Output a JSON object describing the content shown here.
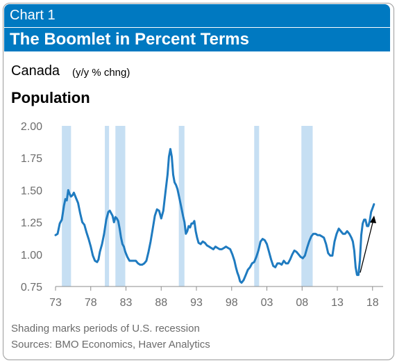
{
  "header": {
    "chart_label": "Chart 1",
    "title": "The Boomlet in Percent Terms"
  },
  "region": "Canada",
  "units": "(y/y % chng)",
  "footnotes": {
    "recession_note": "Shading marks periods of U.S. recession",
    "sources": "Sources: BMO Economics, Haver Analytics"
  },
  "colors": {
    "header": "#0079c1",
    "line": "#1f7bc0",
    "recession": "#c6dff3",
    "arrow": "#000000"
  },
  "chart_data": {
    "type": "line",
    "title": "Population",
    "xlabel": "",
    "ylabel": "",
    "xlim": [
      1973,
      2019.5
    ],
    "ylim": [
      0.75,
      2.0
    ],
    "x_ticks": [
      1973,
      1978,
      1983,
      1988,
      1993,
      1998,
      2003,
      2008,
      2013,
      2018
    ],
    "x_tick_labels": [
      "73",
      "78",
      "83",
      "88",
      "93",
      "98",
      "03",
      "08",
      "13",
      "18"
    ],
    "y_ticks": [
      0.75,
      1.0,
      1.25,
      1.5,
      1.75,
      2.0
    ],
    "y_tick_labels": [
      "0.75",
      "1.00",
      "1.25",
      "1.50",
      "1.75",
      "2.00"
    ],
    "grid": false,
    "legend": "none",
    "recession_periods": [
      [
        1973.9,
        1975.2
      ],
      [
        1980.0,
        1980.6
      ],
      [
        1981.5,
        1982.9
      ],
      [
        1990.5,
        1991.3
      ],
      [
        2001.2,
        2001.9
      ],
      [
        2007.9,
        2009.5
      ]
    ],
    "series": [
      {
        "x": [
          1973.0,
          1973.3,
          1973.6,
          1973.9,
          1974.2,
          1974.4,
          1974.6,
          1974.8,
          1975.0,
          1975.2,
          1975.4,
          1975.6,
          1975.9,
          1976.2,
          1976.5,
          1976.8,
          1977.1,
          1977.4,
          1977.7,
          1978.0,
          1978.3,
          1978.6,
          1978.9,
          1979.1,
          1979.3,
          1979.6,
          1979.9,
          1980.2,
          1980.5,
          1980.7,
          1980.9,
          1981.1,
          1981.3,
          1981.5,
          1981.7,
          1981.9,
          1982.1,
          1982.3,
          1982.5,
          1982.7,
          1982.9,
          1983.2,
          1983.5,
          1983.8,
          1984.1,
          1984.4,
          1984.7,
          1985.0,
          1985.3,
          1985.6,
          1985.9,
          1986.2,
          1986.5,
          1986.8,
          1987.1,
          1987.4,
          1987.7,
          1988.0,
          1988.3,
          1988.6,
          1988.9,
          1989.1,
          1989.3,
          1989.5,
          1989.7,
          1989.9,
          1990.1,
          1990.3,
          1990.5,
          1990.8,
          1991.1,
          1991.3,
          1991.5,
          1991.7,
          1991.9,
          1992.1,
          1992.3,
          1992.5,
          1992.7,
          1992.9,
          1993.1,
          1993.3,
          1993.6,
          1993.9,
          1994.2,
          1994.5,
          1994.8,
          1995.1,
          1995.4,
          1995.7,
          1996.0,
          1996.3,
          1996.6,
          1996.9,
          1997.2,
          1997.5,
          1997.8,
          1998.1,
          1998.4,
          1998.6,
          1998.8,
          1999.0,
          1999.2,
          1999.4,
          1999.7,
          2000.0,
          2000.3,
          2000.6,
          2000.9,
          2001.2,
          2001.5,
          2001.8,
          2002.1,
          2002.4,
          2002.7,
          2003.0,
          2003.3,
          2003.6,
          2003.9,
          2004.2,
          2004.5,
          2004.8,
          2005.1,
          2005.4,
          2005.7,
          2006.0,
          2006.3,
          2006.6,
          2006.9,
          2007.2,
          2007.5,
          2007.8,
          2008.1,
          2008.4,
          2008.7,
          2009.0,
          2009.3,
          2009.6,
          2009.9,
          2010.2,
          2010.5,
          2010.8,
          2011.1,
          2011.4,
          2011.7,
          2012.0,
          2012.3,
          2012.6,
          2012.9,
          2013.2,
          2013.5,
          2013.8,
          2014.1,
          2014.4,
          2014.7,
          2015.0,
          2015.2,
          2015.4,
          2015.6,
          2015.8,
          2016.0,
          2016.2,
          2016.4,
          2016.6,
          2016.8,
          2017.0,
          2017.2,
          2017.4,
          2017.6,
          2017.8,
          2018.0,
          2018.2
        ],
        "values": [
          1.15,
          1.16,
          1.24,
          1.27,
          1.38,
          1.43,
          1.42,
          1.5,
          1.47,
          1.45,
          1.46,
          1.48,
          1.44,
          1.4,
          1.32,
          1.25,
          1.23,
          1.17,
          1.12,
          1.06,
          0.99,
          0.95,
          0.94,
          0.96,
          1.02,
          1.08,
          1.16,
          1.27,
          1.33,
          1.34,
          1.32,
          1.3,
          1.25,
          1.29,
          1.28,
          1.26,
          1.2,
          1.13,
          1.08,
          1.06,
          1.02,
          0.98,
          0.95,
          0.95,
          0.95,
          0.95,
          0.93,
          0.92,
          0.92,
          0.93,
          0.95,
          1.02,
          1.1,
          1.2,
          1.3,
          1.35,
          1.34,
          1.28,
          1.34,
          1.48,
          1.62,
          1.76,
          1.82,
          1.76,
          1.62,
          1.56,
          1.54,
          1.51,
          1.46,
          1.38,
          1.3,
          1.25,
          1.16,
          1.18,
          1.22,
          1.21,
          1.24,
          1.24,
          1.26,
          1.18,
          1.13,
          1.09,
          1.08,
          1.1,
          1.09,
          1.07,
          1.06,
          1.05,
          1.04,
          1.06,
          1.05,
          1.04,
          1.04,
          1.05,
          1.06,
          1.05,
          1.04,
          1.0,
          0.95,
          0.9,
          0.86,
          0.83,
          0.79,
          0.78,
          0.8,
          0.84,
          0.88,
          0.9,
          0.93,
          0.94,
          0.98,
          1.03,
          1.1,
          1.12,
          1.11,
          1.08,
          1.02,
          0.96,
          0.91,
          0.9,
          0.93,
          0.93,
          0.92,
          0.95,
          0.93,
          0.93,
          0.96,
          1.0,
          1.03,
          1.02,
          1.0,
          0.98,
          0.97,
          0.99,
          1.05,
          1.1,
          1.14,
          1.16,
          1.16,
          1.15,
          1.15,
          1.14,
          1.13,
          1.08,
          1.01,
          0.99,
          0.99,
          1.1,
          1.16,
          1.2,
          1.18,
          1.16,
          1.16,
          1.18,
          1.16,
          1.13,
          1.1,
          1.03,
          0.9,
          0.84,
          0.84,
          0.95,
          1.15,
          1.24,
          1.27,
          1.27,
          1.22,
          1.22,
          1.26,
          1.33,
          1.36,
          1.39
        ]
      }
    ]
  }
}
